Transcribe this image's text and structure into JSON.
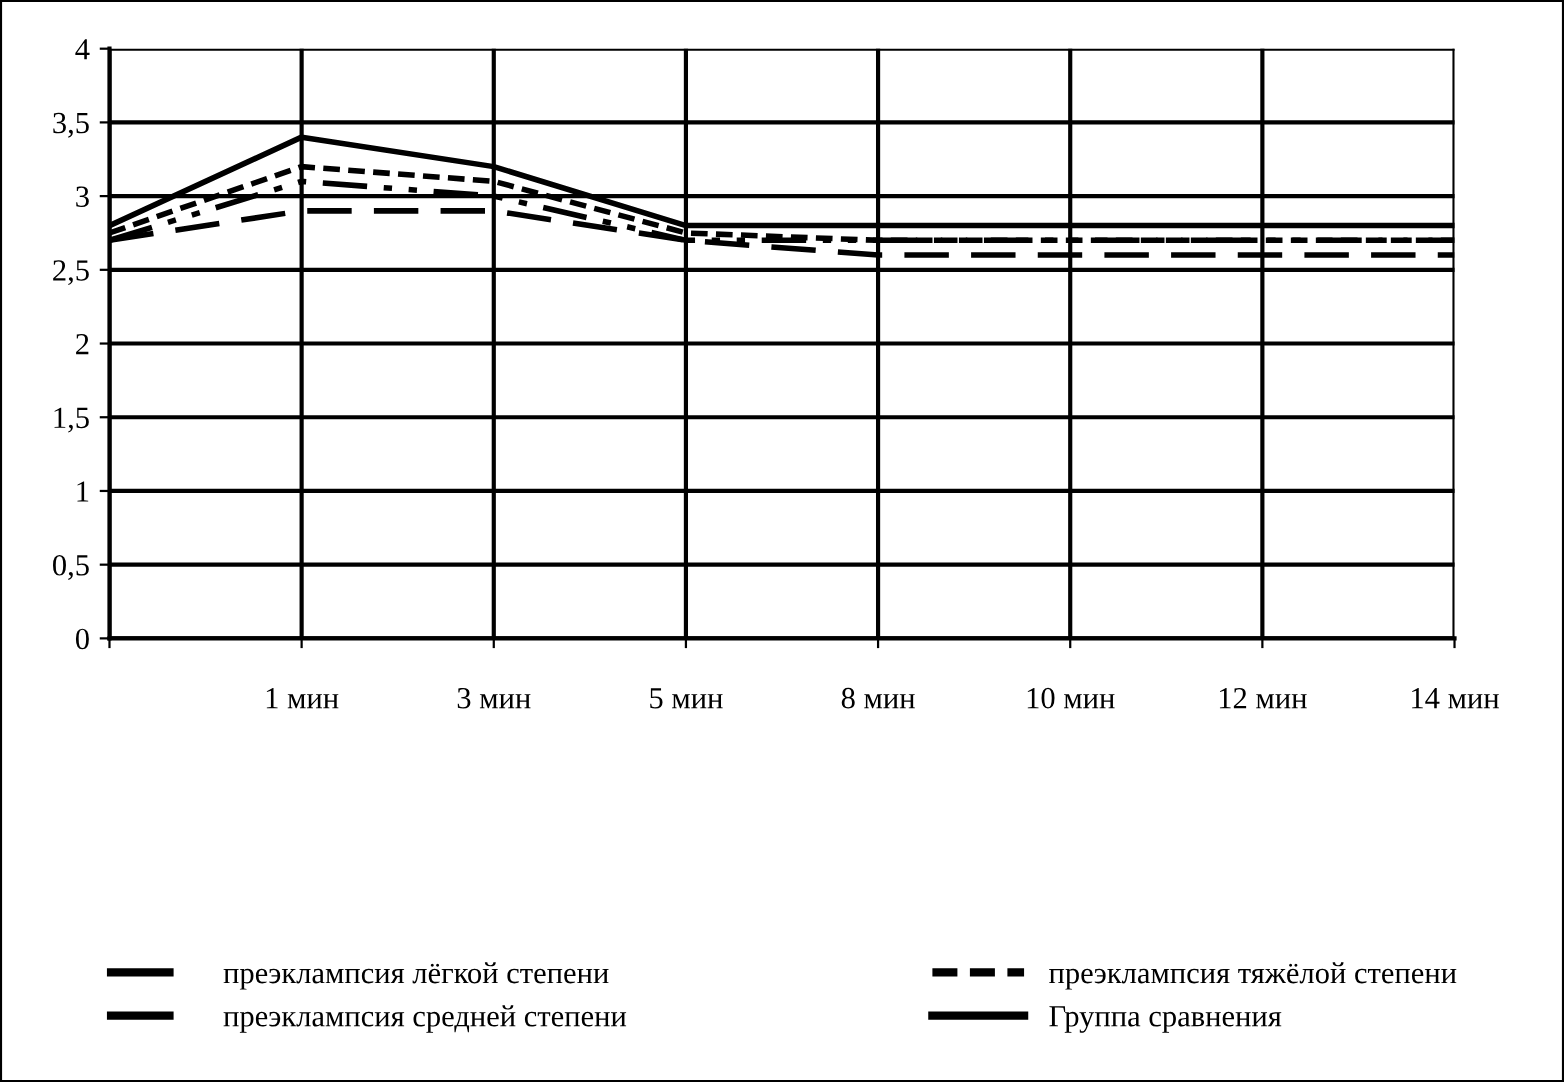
{
  "chart_data": {
    "type": "line",
    "categories": [
      null,
      "1 мин",
      "3 мин",
      "5 мин",
      "8 мин",
      "10 мин",
      "12 мин",
      "14 мин"
    ],
    "series": [
      {
        "name": "преэклампсия лёгкой степени",
        "color": "#000000",
        "line_style": "dashed",
        "values": [
          2.7,
          2.9,
          2.9,
          2.7,
          2.6,
          2.6,
          2.6,
          2.6
        ]
      },
      {
        "name": "преэклампсия средней степени",
        "color": "#000000",
        "line_style": "dashdot",
        "values": [
          2.7,
          3.1,
          3.0,
          2.7,
          2.7,
          2.7,
          2.7,
          2.7
        ]
      },
      {
        "name": "преэклампсия тяжёлой степени",
        "color": "#000000",
        "line_style": "dotted",
        "values": [
          2.75,
          3.2,
          3.1,
          2.75,
          2.7,
          2.7,
          2.7,
          2.7
        ]
      },
      {
        "name": "Группа сравнения",
        "color": "#000000",
        "line_style": "solid",
        "values": [
          2.8,
          3.4,
          3.2,
          2.8,
          2.8,
          2.8,
          2.8,
          2.8
        ]
      }
    ],
    "ylim": [
      0,
      4
    ],
    "yticks": [
      0,
      {
        "value": 0.5,
        "label": "0,5"
      },
      1,
      {
        "value": 1.5,
        "label": "1,5"
      },
      2,
      {
        "value": 2.5,
        "label": "2,5"
      },
      3,
      {
        "value": 3.5,
        "label": "3,5"
      },
      4
    ],
    "grid": true,
    "legend": "bottom",
    "marker": "none"
  }
}
